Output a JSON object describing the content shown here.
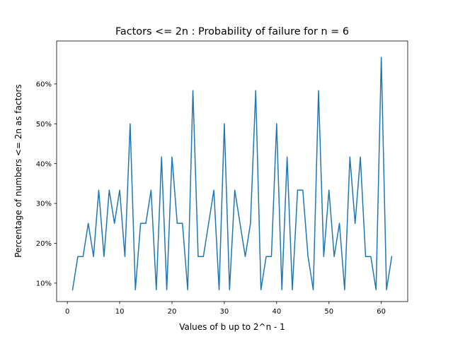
{
  "chart_data": {
    "type": "line",
    "title": "Factors <= 2n : Probability of failure for n = 6",
    "xlabel": "Values of b up to 2^n - 1",
    "ylabel": "Percentage of numbers <= 2n as factors",
    "xlim": [
      -2.05,
      65.05
    ],
    "ylim": [
      5.375,
      70.792
    ],
    "xticks": [
      0,
      10,
      20,
      30,
      40,
      50,
      60
    ],
    "xtick_labels": [
      "0",
      "10",
      "20",
      "30",
      "40",
      "50",
      "60"
    ],
    "yticks": [
      10,
      20,
      30,
      40,
      50,
      60
    ],
    "ytick_labels": [
      "10%",
      "20%",
      "30%",
      "40%",
      "50%",
      "60%"
    ],
    "grid": false,
    "line_color": "#1f77b4",
    "series": [
      {
        "x": [
          1,
          2,
          3,
          4,
          5,
          6,
          7,
          8,
          9,
          10,
          11,
          12,
          13,
          14,
          15,
          16,
          17,
          18,
          19,
          20,
          21,
          22,
          23,
          24,
          25,
          26,
          27,
          28,
          29,
          30,
          31,
          32,
          33,
          34,
          35,
          36,
          37,
          38,
          39,
          40,
          41,
          42,
          43,
          44,
          45,
          46,
          47,
          48,
          49,
          50,
          51,
          52,
          53,
          54,
          55,
          56,
          57,
          58,
          59,
          60,
          61,
          62
        ],
        "values": [
          8.333,
          16.667,
          16.667,
          25,
          16.667,
          33.333,
          16.667,
          33.333,
          25,
          33.333,
          16.667,
          50,
          8.333,
          25,
          25,
          33.333,
          8.333,
          41.667,
          8.333,
          41.667,
          25,
          25,
          8.333,
          58.333,
          16.667,
          16.667,
          25,
          33.333,
          8.333,
          50,
          8.333,
          33.333,
          25,
          16.667,
          25,
          58.333,
          8.333,
          16.667,
          16.667,
          50,
          8.333,
          41.667,
          8.333,
          33.333,
          33.333,
          16.667,
          8.333,
          58.333,
          16.667,
          33.333,
          16.667,
          25,
          8.333,
          41.667,
          25,
          41.667,
          16.667,
          16.667,
          8.333,
          66.667,
          8.333,
          16.667
        ]
      }
    ]
  }
}
